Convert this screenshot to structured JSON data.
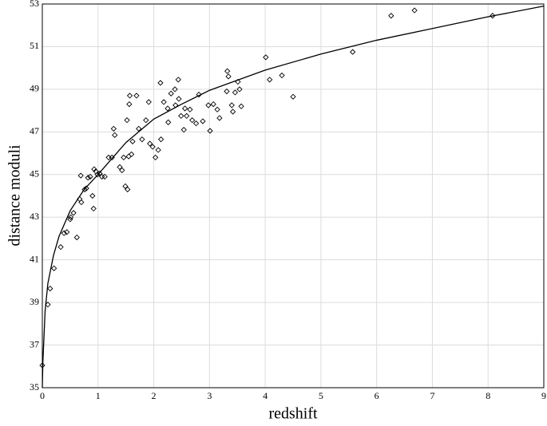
{
  "chart_data": {
    "type": "scatter",
    "xlabel": "redshift",
    "ylabel": "distance moduli",
    "xlim": [
      0,
      9
    ],
    "ylim": [
      35,
      53
    ],
    "xticks": [
      0,
      1,
      2,
      3,
      4,
      5,
      6,
      7,
      8,
      9
    ],
    "yticks": [
      35,
      37,
      39,
      41,
      43,
      45,
      47,
      49,
      51,
      53
    ],
    "grid": true,
    "series": [
      {
        "type": "scatter",
        "color": "#000000",
        "x": [
          0,
          0.1,
          0.14,
          0.21,
          0.33,
          0.39,
          0.44,
          0.5,
          0.51,
          0.56,
          0.62,
          0.67,
          0.69,
          0.7,
          0.76,
          0.79,
          0.82,
          0.86,
          0.9,
          0.92,
          0.93,
          0.96,
          0.99,
          1.03,
          1.07,
          1.12,
          1.19,
          1.25,
          1.28,
          1.3,
          1.39,
          1.43,
          1.46,
          1.49,
          1.52,
          1.53,
          1.55,
          1.56,
          1.57,
          1.6,
          1.62,
          1.69,
          1.73,
          1.79,
          1.86,
          1.91,
          1.93,
          1.98,
          2.03,
          2.08,
          2.12,
          2.13,
          2.18,
          2.25,
          2.26,
          2.31,
          2.38,
          2.39,
          2.44,
          2.45,
          2.49,
          2.54,
          2.56,
          2.59,
          2.65,
          2.69,
          2.76,
          2.81,
          2.88,
          2.98,
          3.01,
          3.07,
          3.14,
          3.18,
          3.31,
          3.32,
          3.34,
          3.4,
          3.42,
          3.46,
          3.51,
          3.54,
          3.57,
          4.01,
          4.08,
          4.3,
          4.5,
          5.57,
          6.26,
          6.68,
          8.08
        ],
        "values": [
          36.05,
          38.9,
          39.65,
          40.6,
          41.6,
          42.25,
          42.3,
          42.9,
          43.0,
          43.2,
          42.05,
          43.85,
          44.95,
          43.7,
          44.3,
          44.35,
          44.85,
          44.9,
          44.0,
          43.4,
          45.25,
          45.15,
          45.0,
          45.05,
          44.9,
          44.9,
          45.8,
          45.8,
          47.15,
          46.85,
          45.35,
          45.2,
          45.8,
          44.45,
          47.55,
          44.3,
          45.85,
          48.3,
          48.7,
          45.95,
          46.55,
          48.7,
          47.15,
          46.65,
          47.55,
          48.4,
          46.45,
          46.3,
          45.8,
          46.15,
          49.3,
          46.65,
          48.4,
          48.1,
          47.45,
          48.8,
          49.0,
          48.25,
          49.45,
          48.55,
          47.75,
          47.1,
          48.1,
          47.75,
          48.05,
          47.55,
          47.4,
          48.75,
          47.5,
          48.25,
          47.05,
          48.3,
          48.05,
          47.65,
          48.9,
          49.85,
          49.6,
          48.25,
          47.95,
          48.85,
          49.35,
          49.0,
          48.2,
          50.5,
          49.45,
          49.65,
          48.65,
          50.75,
          52.45,
          52.7,
          52.45
        ]
      },
      {
        "type": "line",
        "color": "#000000",
        "x": [
          0,
          0.01,
          0.05,
          0.1,
          0.2,
          0.3,
          0.5,
          0.75,
          1,
          1.5,
          2,
          2.5,
          3,
          4,
          5,
          6,
          7,
          8,
          9
        ],
        "values": [
          35,
          36.2,
          38.6,
          39.9,
          41.2,
          42.1,
          43.3,
          44.3,
          45.0,
          46.5,
          47.6,
          48.3,
          48.95,
          49.9,
          50.65,
          51.3,
          51.85,
          52.4,
          52.9
        ]
      }
    ]
  }
}
